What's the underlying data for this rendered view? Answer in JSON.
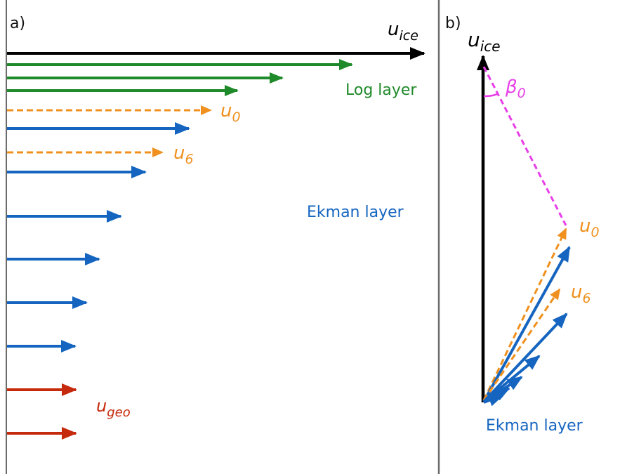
{
  "panels": {
    "a": {
      "label": "a)",
      "labels": {
        "u_ice": {
          "base": "u",
          "sub": "ice"
        },
        "log_layer": "Log layer",
        "u0": {
          "base": "u",
          "sub": "0"
        },
        "u6": {
          "base": "u",
          "sub": "6"
        },
        "ekman_layer": "Ekman layer",
        "u_geo": {
          "base": "u",
          "sub": "geo"
        }
      }
    },
    "b": {
      "label": "b)",
      "labels": {
        "u_ice": {
          "base": "u",
          "sub": "ice"
        },
        "beta0": {
          "base": "β",
          "sub": "0"
        },
        "u0": {
          "base": "u",
          "sub": "0"
        },
        "u6": {
          "base": "u",
          "sub": "6"
        },
        "ekman_layer": "Ekman layer"
      }
    }
  },
  "colors": {
    "ice": "#000000",
    "log": "#1f8a2a",
    "dashed": "#f0901e",
    "ekman": "#1565c0",
    "geo": "#c62a0c",
    "angle": "#e83ee8",
    "frame": "#6b6b6b"
  }
}
